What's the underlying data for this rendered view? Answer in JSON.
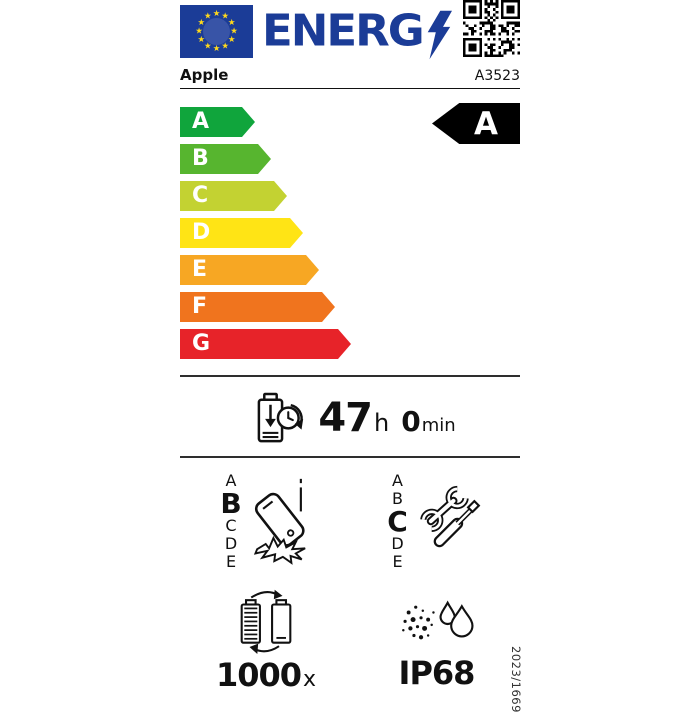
{
  "header": {
    "logo_text": "ENERG",
    "icons": [
      "eu-flag-icon",
      "lightning-bolt-icon",
      "qr-code"
    ]
  },
  "brand": {
    "name": "Apple",
    "model": "A3523"
  },
  "rating_scale": {
    "selected": "A",
    "bars": [
      {
        "grade": "A",
        "color": "#10a53c"
      },
      {
        "grade": "B",
        "color": "#57b52f"
      },
      {
        "grade": "C",
        "color": "#c3d232"
      },
      {
        "grade": "D",
        "color": "#ffe415"
      },
      {
        "grade": "E",
        "color": "#f7a723"
      },
      {
        "grade": "F",
        "color": "#f0741e",
        "label_note": ""
      },
      {
        "grade": "G",
        "color": "#e72329"
      }
    ]
  },
  "battery_endurance": {
    "hours": "47",
    "hours_unit": "h",
    "minutes": "0",
    "minutes_unit": "min"
  },
  "drop_resistance": {
    "scale": [
      "A",
      "B",
      "C",
      "D",
      "E"
    ],
    "selected": "B"
  },
  "repairability": {
    "scale": [
      "A",
      "B",
      "C",
      "D",
      "E"
    ],
    "selected": "C"
  },
  "battery_cycles": {
    "value": "1000",
    "unit": "x"
  },
  "ingress_protection": {
    "value": "IP68"
  },
  "regulation": "2023/1669",
  "colors": {
    "eu_blue": "#1b3c97",
    "star_yellow": "#ffd91c",
    "indicator_black": "#000000"
  }
}
